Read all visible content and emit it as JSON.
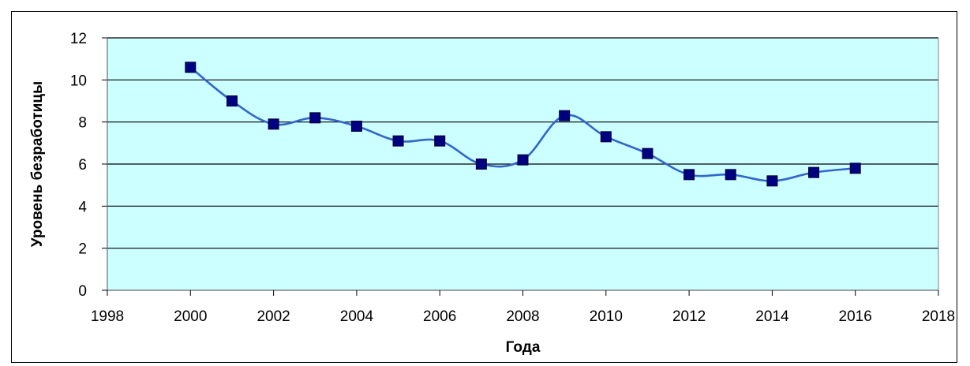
{
  "chart_data": {
    "type": "line",
    "title": "",
    "xlabel": "Года",
    "ylabel": "Уровень безработицы",
    "xlim": [
      1998,
      2018
    ],
    "ylim": [
      0,
      12
    ],
    "x_ticks": [
      1998,
      2000,
      2002,
      2004,
      2006,
      2008,
      2010,
      2012,
      2014,
      2016,
      2018
    ],
    "y_ticks": [
      0,
      2,
      4,
      6,
      8,
      10,
      12
    ],
    "grid": "horizontal",
    "legend": "none",
    "series": [
      {
        "x": [
          2000,
          2001,
          2002,
          2003,
          2004,
          2005,
          2006,
          2007,
          2008,
          2009,
          2010,
          2011,
          2012,
          2013,
          2014,
          2015,
          2016
        ],
        "y": [
          10.6,
          9.0,
          7.9,
          8.2,
          7.8,
          7.1,
          7.1,
          6.0,
          6.2,
          8.3,
          7.3,
          6.5,
          5.5,
          5.5,
          5.2,
          5.6,
          5.8
        ]
      }
    ],
    "colors": {
      "plot_background": "#ccffff",
      "line": "#3366cc",
      "marker": "#000080",
      "grid": "#000000"
    }
  }
}
